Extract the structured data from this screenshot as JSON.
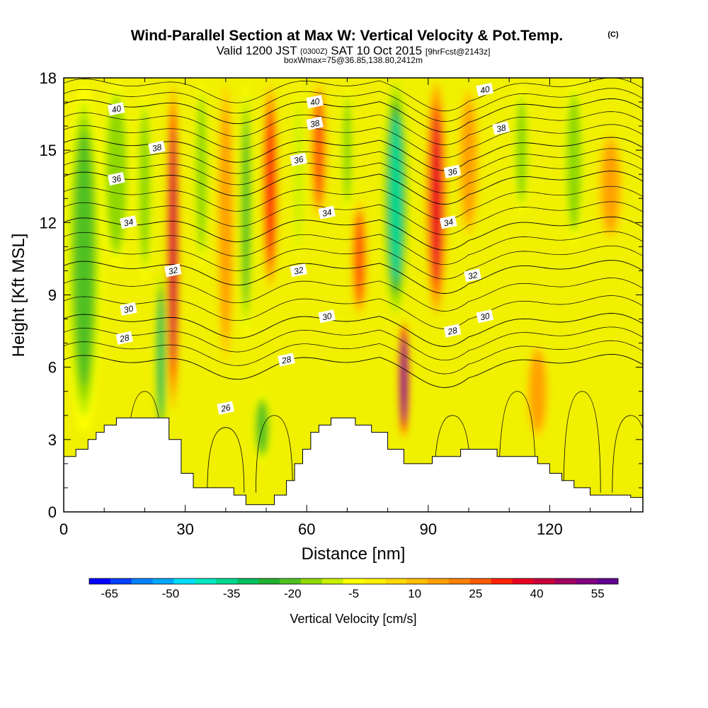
{
  "title": {
    "main": "Wind-Parallel Section at Max W: Vertical Velocity & Pot.Temp.",
    "copyright": "(C)",
    "valid_prefix": "Valid 1200 JST",
    "valid_zulu": "(0300Z)",
    "valid_date": "SAT 10 Oct 2015",
    "forecast": "[9hrFcst@2143z]",
    "boxinfo": "boxWmax=75@36.85,138.80,2412m"
  },
  "chart_data": {
    "type": "heatmap",
    "xlabel": "Distance [nm]",
    "ylabel": "Height [Kft MSL]",
    "xlim": [
      0,
      143
    ],
    "ylim": [
      0,
      18
    ],
    "x_ticks": [
      0,
      30,
      60,
      90,
      120
    ],
    "y_ticks": [
      0,
      3,
      6,
      9,
      12,
      15,
      18
    ],
    "colorbar": {
      "label": "Vertical Velocity [cm/s]",
      "tick_labels": [
        "-65",
        "-50",
        "-35",
        "-20",
        "-5",
        "10",
        "25",
        "40",
        "55"
      ],
      "tick_values": [
        -65,
        -50,
        -35,
        -20,
        -5,
        10,
        25,
        40,
        55
      ],
      "colors": [
        "#0000ff",
        "#0040ff",
        "#0080ff",
        "#00a8ff",
        "#00dfff",
        "#00e8c0",
        "#00d890",
        "#00c060",
        "#20b030",
        "#50c020",
        "#90d800",
        "#c8f000",
        "#ffff00",
        "#fff000",
        "#ffd800",
        "#ffbe00",
        "#ffa000",
        "#ff8000",
        "#ff5c00",
        "#ff2000",
        "#e80020",
        "#c8003c",
        "#a00060",
        "#800080",
        "#600090"
      ]
    },
    "velocity_columns": [
      {
        "x": 5,
        "w": 9,
        "top": 18,
        "bottom": 3,
        "peak": -20
      },
      {
        "x": 13,
        "w": 7,
        "top": 18,
        "bottom": 10,
        "peak": -18
      },
      {
        "x": 20,
        "w": 5,
        "top": 18,
        "bottom": 9,
        "peak": -15
      },
      {
        "x": 24,
        "w": 2.5,
        "top": 10,
        "bottom": 3,
        "peak": -32
      },
      {
        "x": 27,
        "w": 3,
        "top": 18,
        "bottom": 4,
        "peak": 40
      },
      {
        "x": 34,
        "w": 3.5,
        "top": 18,
        "bottom": 10,
        "peak": -18
      },
      {
        "x": 40,
        "w": 4,
        "top": 18,
        "bottom": 6,
        "peak": 18
      },
      {
        "x": 45,
        "w": 3.5,
        "top": 18,
        "bottom": 7,
        "peak": -22
      },
      {
        "x": 49,
        "w": 5,
        "top": 5,
        "bottom": 2,
        "peak": -22
      },
      {
        "x": 51,
        "w": 4,
        "top": 18,
        "bottom": 9,
        "peak": 30
      },
      {
        "x": 58,
        "w": 3,
        "top": 18,
        "bottom": 10,
        "peak": -12
      },
      {
        "x": 63,
        "w": 4,
        "top": 18,
        "bottom": 12,
        "peak": 25
      },
      {
        "x": 70,
        "w": 4,
        "top": 18,
        "bottom": 12,
        "peak": -15
      },
      {
        "x": 73,
        "w": 4,
        "top": 13,
        "bottom": 8,
        "peak": 25
      },
      {
        "x": 82,
        "w": 6,
        "top": 18,
        "bottom": 8,
        "peak": -35
      },
      {
        "x": 84,
        "w": 2.5,
        "top": 8,
        "bottom": 3,
        "peak": 58
      },
      {
        "x": 92,
        "w": 5,
        "top": 18,
        "bottom": 8,
        "peak": 35
      },
      {
        "x": 100,
        "w": 6,
        "top": 18,
        "bottom": 11,
        "peak": 15
      },
      {
        "x": 113,
        "w": 5,
        "top": 18,
        "bottom": 12,
        "peak": -15
      },
      {
        "x": 117,
        "w": 5,
        "top": 7,
        "bottom": 3,
        "peak": 18
      },
      {
        "x": 126,
        "w": 5,
        "top": 18,
        "bottom": 11,
        "peak": -18
      },
      {
        "x": 135,
        "w": 7,
        "top": 16,
        "bottom": 11,
        "peak": 15
      }
    ],
    "terrain": [
      [
        0,
        2.3
      ],
      [
        3,
        2.3
      ],
      [
        3,
        2.6
      ],
      [
        6,
        2.6
      ],
      [
        6,
        3.0
      ],
      [
        8,
        3.0
      ],
      [
        8,
        3.3
      ],
      [
        10,
        3.3
      ],
      [
        10,
        3.6
      ],
      [
        13,
        3.6
      ],
      [
        13,
        3.9
      ],
      [
        26,
        3.9
      ],
      [
        26,
        3.0
      ],
      [
        29,
        3.0
      ],
      [
        29,
        1.6
      ],
      [
        32,
        1.6
      ],
      [
        32,
        1.0
      ],
      [
        42,
        1.0
      ],
      [
        42,
        0.7
      ],
      [
        45,
        0.7
      ],
      [
        45,
        0.3
      ],
      [
        52,
        0.3
      ],
      [
        52,
        0.7
      ],
      [
        55,
        0.7
      ],
      [
        55,
        1.3
      ],
      [
        57,
        1.3
      ],
      [
        57,
        2.0
      ],
      [
        59,
        2.0
      ],
      [
        59,
        2.6
      ],
      [
        61,
        2.6
      ],
      [
        61,
        3.3
      ],
      [
        63,
        3.3
      ],
      [
        63,
        3.6
      ],
      [
        66,
        3.6
      ],
      [
        66,
        3.9
      ],
      [
        72,
        3.9
      ],
      [
        72,
        3.6
      ],
      [
        76,
        3.6
      ],
      [
        76,
        3.3
      ],
      [
        80,
        3.3
      ],
      [
        80,
        2.6
      ],
      [
        84,
        2.6
      ],
      [
        84,
        2.0
      ],
      [
        91,
        2.0
      ],
      [
        91,
        2.3
      ],
      [
        98,
        2.3
      ],
      [
        98,
        2.6
      ],
      [
        107,
        2.6
      ],
      [
        107,
        2.3
      ],
      [
        117,
        2.3
      ],
      [
        117,
        2.0
      ],
      [
        120,
        2.0
      ],
      [
        120,
        1.6
      ],
      [
        123,
        1.6
      ],
      [
        123,
        1.3
      ],
      [
        126,
        1.3
      ],
      [
        126,
        1.0
      ],
      [
        130,
        1.0
      ],
      [
        130,
        0.7
      ],
      [
        140,
        0.7
      ],
      [
        140,
        0.6
      ],
      [
        143,
        0.6
      ]
    ],
    "theta_contours": [
      {
        "label": "28",
        "base": 6.1,
        "label_pos": [
          [
            15,
            7.2
          ],
          [
            55,
            6.3
          ],
          [
            96,
            7.5
          ]
        ]
      },
      {
        "label": "30",
        "base": 7.8,
        "label_pos": [
          [
            16,
            8.4
          ],
          [
            65,
            8.1
          ],
          [
            104,
            8.1
          ]
        ]
      },
      {
        "label": "32",
        "base": 10.0,
        "label_pos": [
          [
            27,
            10.0
          ],
          [
            58,
            10.0
          ],
          [
            101,
            9.8
          ]
        ]
      },
      {
        "label": "34",
        "base": 11.8,
        "label_pos": [
          [
            16,
            12.0
          ],
          [
            65,
            12.4
          ],
          [
            95,
            12.0
          ]
        ]
      },
      {
        "label": "36",
        "base": 13.7,
        "label_pos": [
          [
            13,
            13.8
          ],
          [
            58,
            14.6
          ],
          [
            96,
            14.1
          ]
        ]
      },
      {
        "label": "38",
        "base": 15.1,
        "label_pos": [
          [
            23,
            15.1
          ],
          [
            62,
            16.1
          ],
          [
            108,
            15.9
          ]
        ]
      },
      {
        "label": "40",
        "base": 16.7,
        "label_pos": [
          [
            13,
            16.7
          ],
          [
            62,
            17.0
          ],
          [
            104,
            17.5
          ]
        ]
      }
    ],
    "theta_contour_26": {
      "label": "26",
      "label_pos": [
        40,
        4.3
      ]
    }
  }
}
